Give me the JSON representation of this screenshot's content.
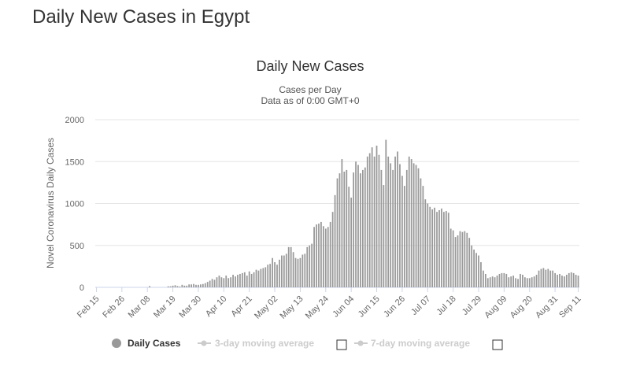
{
  "page": {
    "title": "Daily New Cases in Egypt"
  },
  "chart_data": {
    "type": "bar",
    "title": "Daily New Cases",
    "subtitle_lines": [
      "Cases per Day",
      "Data as of 0:00 GMT+0"
    ],
    "xlabel": "",
    "ylabel": "Novel Coronavirus Daily Cases",
    "ylim": [
      0,
      2000
    ],
    "yticks": [
      0,
      500,
      1000,
      1500,
      2000
    ],
    "grid": true,
    "x_tick_labels": [
      "Feb 15",
      "Feb 26",
      "Mar 08",
      "Mar 19",
      "Mar 30",
      "Apr 10",
      "Apr 21",
      "May 02",
      "May 13",
      "May 24",
      "Jun 04",
      "Jun 15",
      "Jun 26",
      "Jul 07",
      "Jul 18",
      "Jul 29",
      "Aug 09",
      "Aug 20",
      "Aug 31",
      "Sep 11"
    ],
    "x_tick_every": 11,
    "series": [
      {
        "name": "Daily Cases",
        "color": "#999999",
        "values": [
          0,
          0,
          0,
          0,
          0,
          0,
          0,
          0,
          0,
          0,
          0,
          0,
          0,
          0,
          0,
          0,
          0,
          0,
          0,
          0,
          0,
          0,
          0,
          15,
          0,
          0,
          0,
          0,
          0,
          0,
          0,
          12,
          12,
          20,
          25,
          15,
          10,
          30,
          20,
          20,
          35,
          35,
          40,
          30,
          30,
          35,
          40,
          50,
          65,
          80,
          100,
          90,
          120,
          140,
          120,
          110,
          140,
          110,
          120,
          150,
          130,
          150,
          160,
          170,
          180,
          140,
          190,
          160,
          180,
          210,
          200,
          220,
          230,
          240,
          270,
          280,
          350,
          300,
          270,
          330,
          380,
          380,
          400,
          480,
          480,
          420,
          350,
          340,
          350,
          390,
          400,
          480,
          500,
          520,
          720,
          750,
          760,
          780,
          730,
          700,
          720,
          780,
          900,
          1100,
          1300,
          1360,
          1530,
          1380,
          1400,
          1200,
          1070,
          1370,
          1500,
          1460,
          1360,
          1400,
          1430,
          1560,
          1600,
          1670,
          1560,
          1690,
          1580,
          1400,
          1220,
          1760,
          1560,
          1480,
          1400,
          1560,
          1620,
          1470,
          1330,
          1210,
          1400,
          1560,
          1530,
          1480,
          1460,
          1420,
          1300,
          1210,
          1050,
          1000,
          960,
          930,
          950,
          900,
          920,
          940,
          900,
          910,
          890,
          700,
          680,
          600,
          620,
          670,
          660,
          670,
          650,
          590,
          500,
          450,
          410,
          380,
          300,
          200,
          160,
          110,
          120,
          130,
          120,
          140,
          160,
          170,
          170,
          160,
          120,
          130,
          140,
          110,
          100,
          160,
          150,
          120,
          110,
          110,
          120,
          130,
          150,
          200,
          220,
          230,
          210,
          220,
          200,
          200,
          170,
          150,
          160,
          140,
          130,
          150,
          170,
          180,
          170,
          150,
          140
        ]
      }
    ],
    "legend": {
      "position": "bottom",
      "items": [
        {
          "label": "Daily Cases",
          "active": true,
          "color": "#999999"
        },
        {
          "label": "3-day moving average",
          "active": false,
          "color": "#cccccc"
        },
        {
          "label": "7-day moving average",
          "active": false,
          "color": "#cccccc"
        }
      ]
    }
  }
}
